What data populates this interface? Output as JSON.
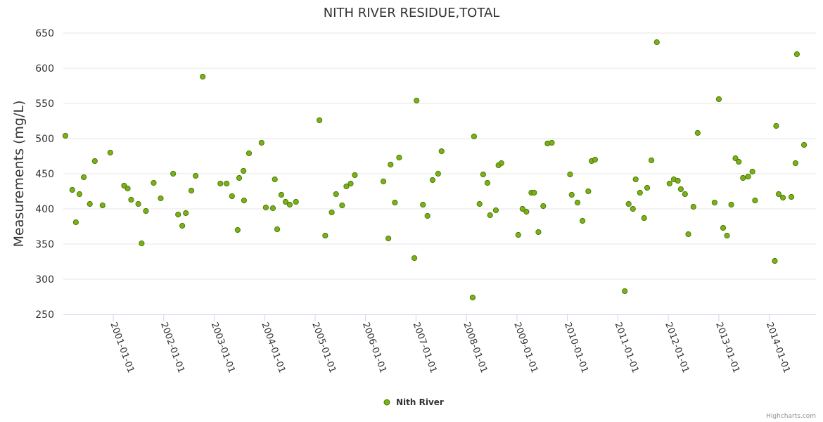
{
  "chart_data": {
    "type": "scatter",
    "title": "NITH RIVER RESIDUE,TOTAL",
    "xlabel": "",
    "ylabel": "Measurements (mg/L)",
    "ylim": [
      250,
      650
    ],
    "yticks": [
      250,
      300,
      350,
      400,
      450,
      500,
      550,
      600,
      650
    ],
    "xlim": [
      "2000-01-05",
      "2014-12-05"
    ],
    "xticks": [
      "2001-01-01",
      "2002-01-01",
      "2003-01-01",
      "2004-01-01",
      "2005-01-01",
      "2006-01-01",
      "2007-01-01",
      "2008-01-01",
      "2009-01-01",
      "2010-01-01",
      "2011-01-01",
      "2012-01-01",
      "2013-01-01",
      "2014-01-01"
    ],
    "grid": {
      "horizontal": true,
      "vertical": false
    },
    "legend": {
      "position": "bottom-center"
    },
    "colors": {
      "marker_fill": "#7cb016",
      "marker_stroke": "#4a7a0a",
      "grid": "#e6e6e6",
      "axis": "#ccd6eb"
    },
    "series": [
      {
        "name": "Nith River",
        "points": [
          [
            "2000-01-20",
            504
          ],
          [
            "2000-03-10",
            427
          ],
          [
            "2000-04-05",
            381
          ],
          [
            "2000-05-01",
            421
          ],
          [
            "2000-06-01",
            445
          ],
          [
            "2000-07-15",
            407
          ],
          [
            "2000-08-20",
            468
          ],
          [
            "2000-10-15",
            405
          ],
          [
            "2000-12-10",
            480
          ],
          [
            "2001-03-20",
            433
          ],
          [
            "2001-04-15",
            429
          ],
          [
            "2001-05-10",
            413
          ],
          [
            "2001-07-01",
            407
          ],
          [
            "2001-07-25",
            351
          ],
          [
            "2001-08-25",
            397
          ],
          [
            "2001-10-20",
            437
          ],
          [
            "2001-12-10",
            415
          ],
          [
            "2002-03-10",
            450
          ],
          [
            "2002-04-15",
            392
          ],
          [
            "2002-05-15",
            376
          ],
          [
            "2002-06-10",
            394
          ],
          [
            "2002-07-20",
            426
          ],
          [
            "2002-08-20",
            447
          ],
          [
            "2002-10-10",
            588
          ],
          [
            "2003-02-15",
            436
          ],
          [
            "2003-04-01",
            436
          ],
          [
            "2003-05-10",
            418
          ],
          [
            "2003-06-20",
            370
          ],
          [
            "2003-07-01",
            444
          ],
          [
            "2003-08-01",
            454
          ],
          [
            "2003-08-05",
            412
          ],
          [
            "2003-09-10",
            479
          ],
          [
            "2003-12-10",
            494
          ],
          [
            "2004-01-10",
            402
          ],
          [
            "2004-03-01",
            401
          ],
          [
            "2004-03-15",
            442
          ],
          [
            "2004-04-01",
            371
          ],
          [
            "2004-05-01",
            420
          ],
          [
            "2004-06-01",
            410
          ],
          [
            "2004-07-01",
            406
          ],
          [
            "2004-08-15",
            410
          ],
          [
            "2005-02-01",
            526
          ],
          [
            "2005-03-15",
            362
          ],
          [
            "2005-05-01",
            395
          ],
          [
            "2005-06-01",
            421
          ],
          [
            "2005-07-15",
            405
          ],
          [
            "2005-08-15",
            432
          ],
          [
            "2005-09-15",
            436
          ],
          [
            "2005-10-15",
            448
          ],
          [
            "2006-05-10",
            439
          ],
          [
            "2006-06-15",
            358
          ],
          [
            "2006-07-01",
            463
          ],
          [
            "2006-08-01",
            409
          ],
          [
            "2006-09-01",
            473
          ],
          [
            "2006-12-20",
            330
          ],
          [
            "2007-01-05",
            554
          ],
          [
            "2007-02-20",
            406
          ],
          [
            "2007-03-25",
            390
          ],
          [
            "2007-05-01",
            441
          ],
          [
            "2007-06-10",
            450
          ],
          [
            "2007-07-05",
            482
          ],
          [
            "2008-02-15",
            274
          ],
          [
            "2008-02-25",
            503
          ],
          [
            "2008-04-05",
            407
          ],
          [
            "2008-05-01",
            449
          ],
          [
            "2008-06-01",
            437
          ],
          [
            "2008-06-20",
            391
          ],
          [
            "2008-08-01",
            398
          ],
          [
            "2008-08-20",
            462
          ],
          [
            "2008-09-10",
            465
          ],
          [
            "2009-01-10",
            363
          ],
          [
            "2009-02-10",
            400
          ],
          [
            "2009-03-10",
            396
          ],
          [
            "2009-04-15",
            423
          ],
          [
            "2009-05-05",
            423
          ],
          [
            "2009-06-05",
            367
          ],
          [
            "2009-07-10",
            404
          ],
          [
            "2009-08-10",
            493
          ],
          [
            "2009-09-10",
            494
          ],
          [
            "2010-01-20",
            449
          ],
          [
            "2010-02-01",
            420
          ],
          [
            "2010-03-15",
            409
          ],
          [
            "2010-04-20",
            383
          ],
          [
            "2010-06-01",
            425
          ],
          [
            "2010-06-25",
            468
          ],
          [
            "2010-07-20",
            470
          ],
          [
            "2011-02-20",
            283
          ],
          [
            "2011-03-20",
            407
          ],
          [
            "2011-04-20",
            400
          ],
          [
            "2011-05-10",
            442
          ],
          [
            "2011-06-10",
            423
          ],
          [
            "2011-07-10",
            387
          ],
          [
            "2011-08-01",
            430
          ],
          [
            "2011-09-01",
            469
          ],
          [
            "2011-10-10",
            637
          ],
          [
            "2012-01-10",
            436
          ],
          [
            "2012-02-10",
            442
          ],
          [
            "2012-03-10",
            440
          ],
          [
            "2012-04-01",
            428
          ],
          [
            "2012-05-01",
            421
          ],
          [
            "2012-05-25",
            364
          ],
          [
            "2012-07-01",
            403
          ],
          [
            "2012-08-01",
            508
          ],
          [
            "2012-12-01",
            409
          ],
          [
            "2013-01-01",
            556
          ],
          [
            "2013-02-01",
            373
          ],
          [
            "2013-03-01",
            362
          ],
          [
            "2013-04-01",
            406
          ],
          [
            "2013-05-01",
            472
          ],
          [
            "2013-05-25",
            467
          ],
          [
            "2013-06-25",
            444
          ],
          [
            "2013-08-01",
            446
          ],
          [
            "2013-09-01",
            453
          ],
          [
            "2013-09-20",
            412
          ],
          [
            "2014-02-10",
            326
          ],
          [
            "2014-02-20",
            518
          ],
          [
            "2014-03-10",
            421
          ],
          [
            "2014-04-10",
            416
          ],
          [
            "2014-06-10",
            417
          ],
          [
            "2014-07-10",
            465
          ],
          [
            "2014-07-20",
            620
          ],
          [
            "2014-09-10",
            491
          ]
        ]
      }
    ],
    "credits": "Highcharts.com"
  }
}
